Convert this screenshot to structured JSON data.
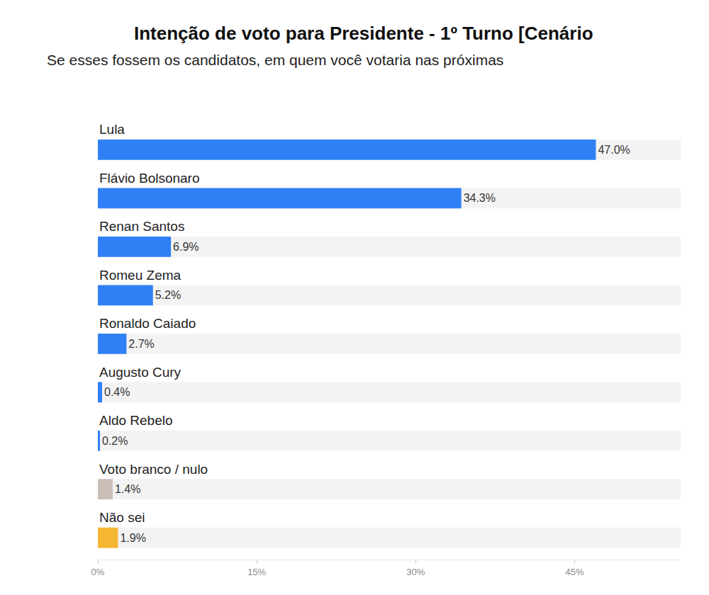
{
  "chart_data": {
    "type": "bar",
    "orientation": "horizontal",
    "title": "Intenção de voto para Presidente - 1º Turno [Cenário",
    "subtitle": "Se esses fossem os candidatos, em quem você votaria nas próximas",
    "categories": [
      "Lula",
      "Flávio Bolsonaro",
      "Renan Santos",
      "Romeu Zema",
      "Ronaldo Caiado",
      "Augusto Cury",
      "Aldo Rebelo",
      "Voto branco / nulo",
      "Não sei"
    ],
    "values": [
      47.0,
      34.3,
      6.9,
      5.2,
      2.7,
      0.4,
      0.2,
      1.4,
      1.9
    ],
    "value_labels": [
      "47.0%",
      "34.3%",
      "6.9%",
      "5.2%",
      "2.7%",
      "0.4%",
      "0.2%",
      "1.4%",
      "1.9%"
    ],
    "colors": [
      "#2f80f5",
      "#2f80f5",
      "#2f80f5",
      "#2f80f5",
      "#2f80f5",
      "#2f80f5",
      "#2f80f5",
      "#c9bfb8",
      "#f5b731"
    ],
    "xlim": [
      0,
      55
    ],
    "xticks": [
      {
        "value": 0,
        "label": "0%"
      },
      {
        "value": 15,
        "label": "15%"
      },
      {
        "value": 30,
        "label": "30%"
      },
      {
        "value": 45,
        "label": "45%"
      }
    ],
    "data_labels": true,
    "grid": false
  }
}
